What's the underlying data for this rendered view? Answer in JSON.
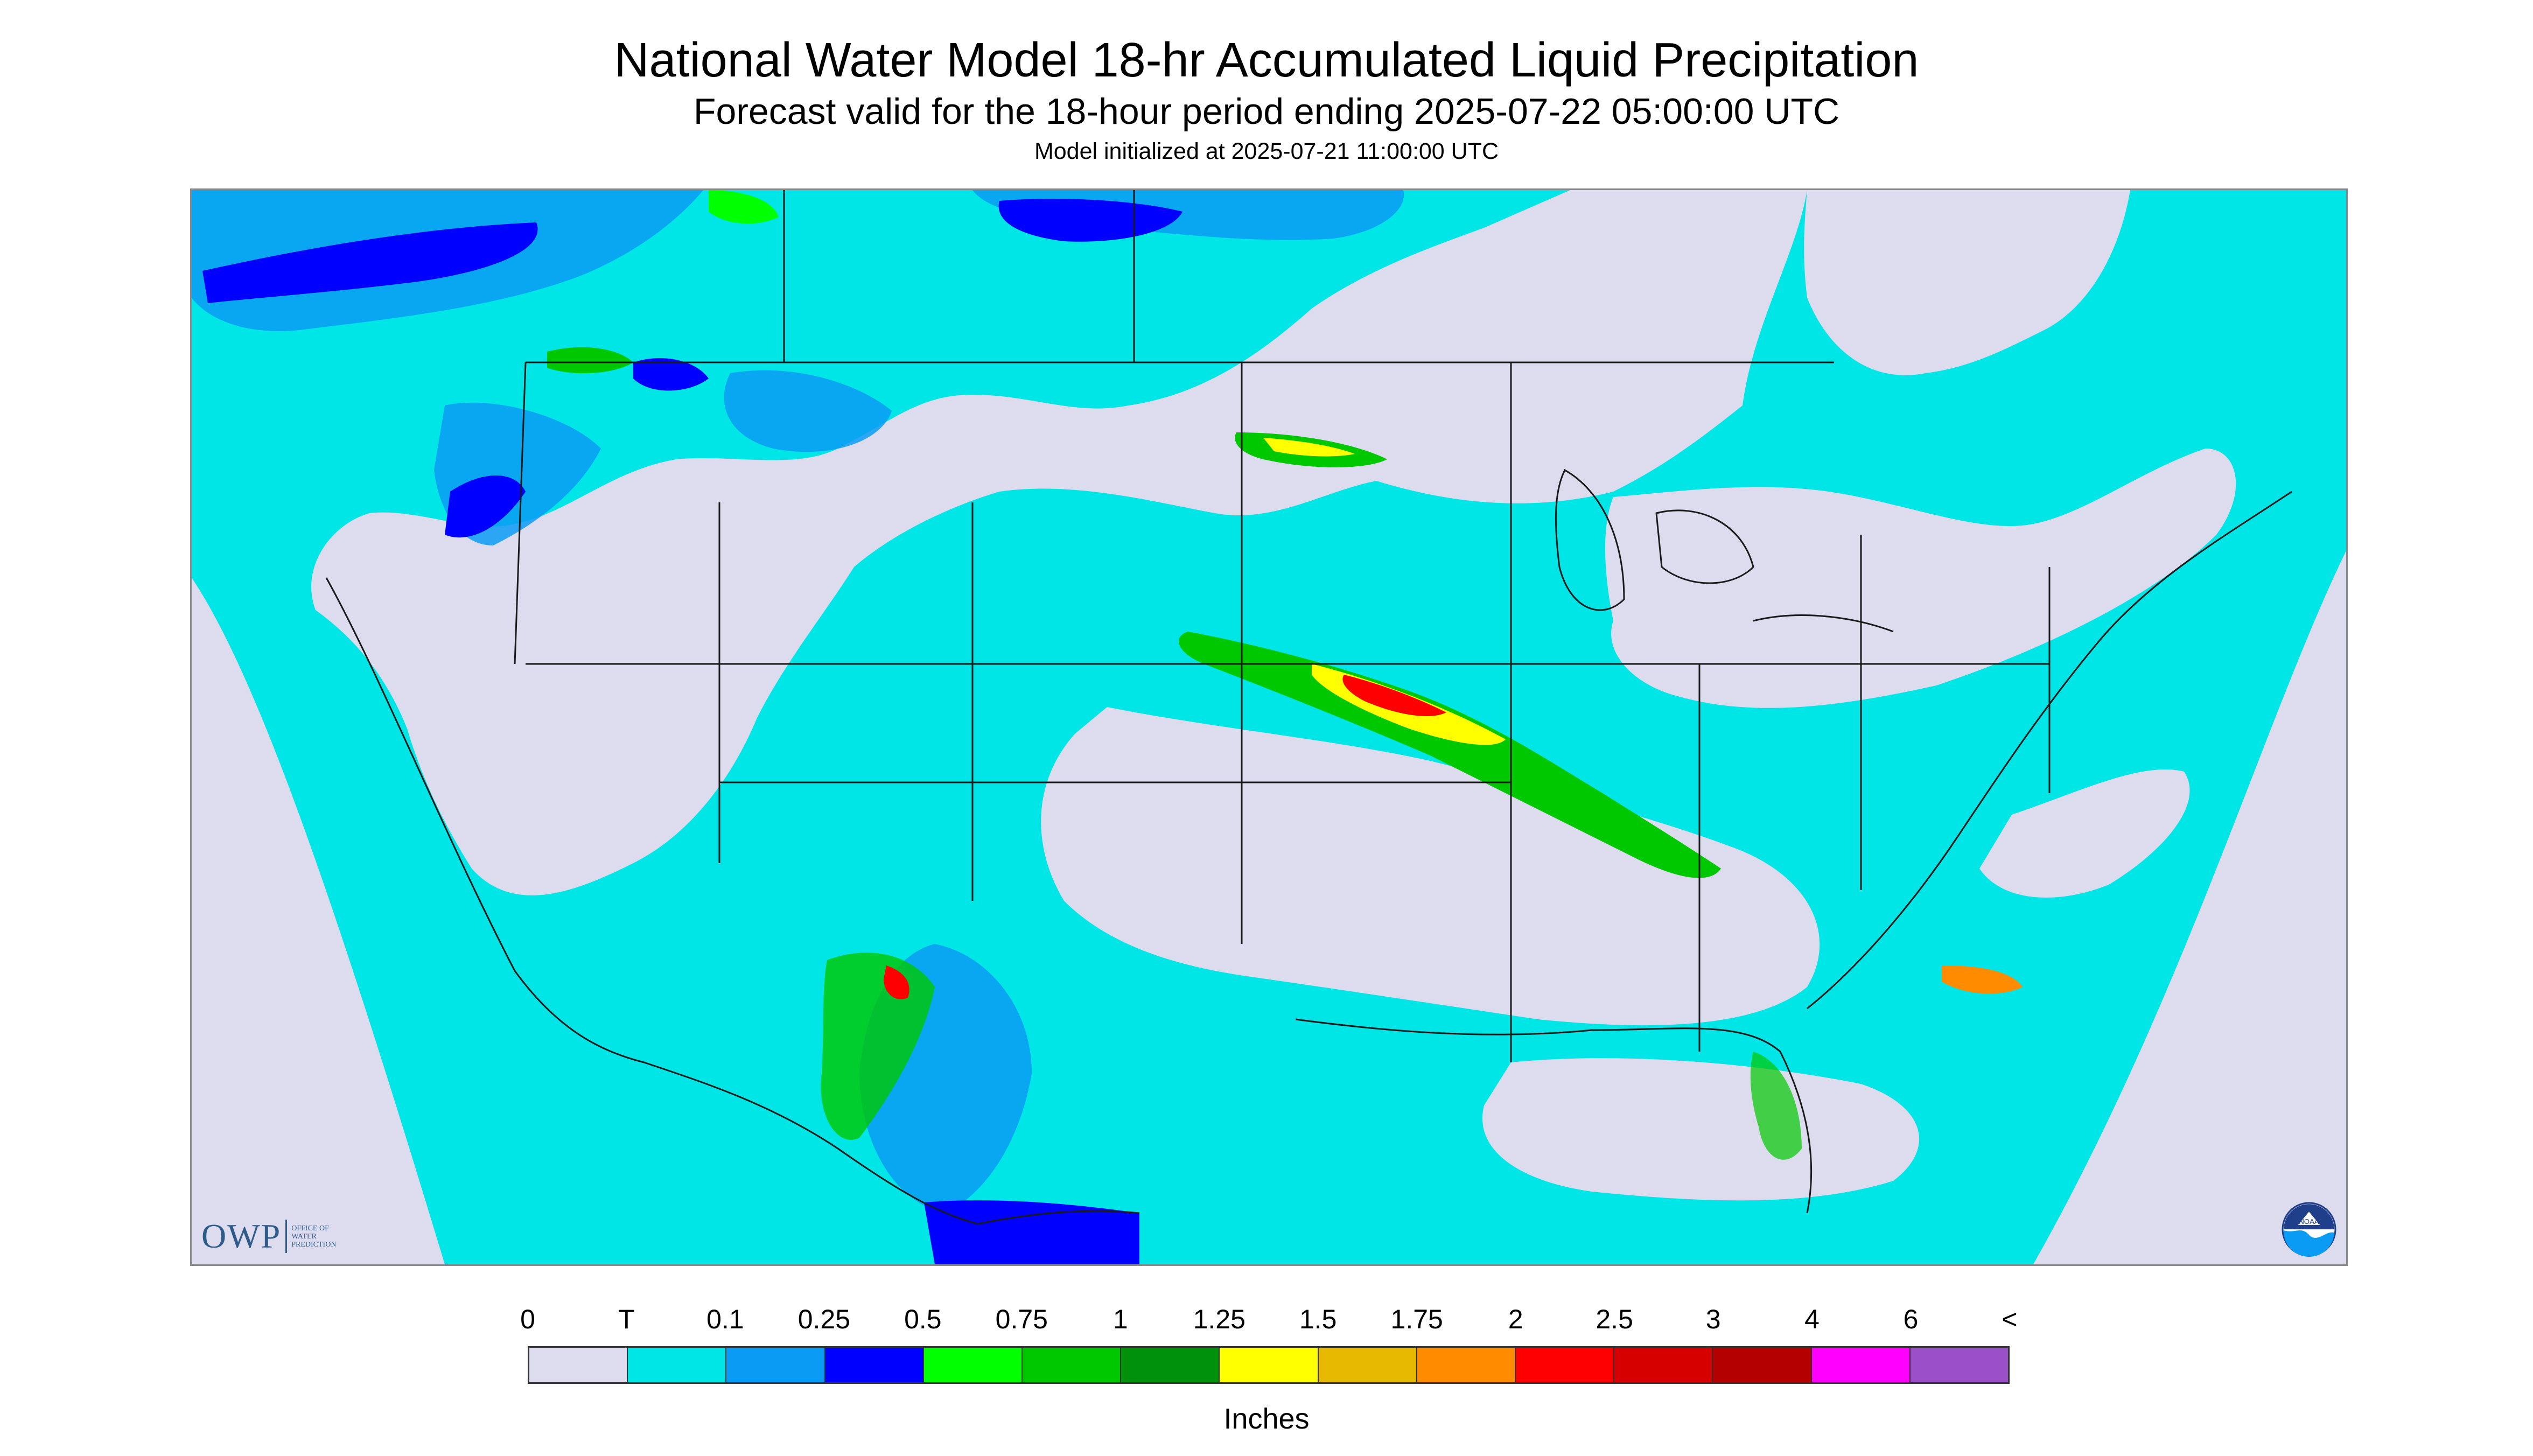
{
  "header": {
    "title": "National Water Model 18-hr Accumulated Liquid Precipitation",
    "subtitle": "Forecast valid for the 18-hour period ending 2025-07-22 05:00:00 UTC",
    "init_line": "Model initialized at 2025-07-21 11:00:00 UTC"
  },
  "logos": {
    "owp_letters": "OWP",
    "owp_words": [
      "OFFICE OF",
      "WATER",
      "PREDICTION"
    ],
    "noaa_text": "NOAA"
  },
  "legend": {
    "tick_labels": [
      "0",
      "T",
      "0.1",
      "0.25",
      "0.5",
      "0.75",
      "1",
      "1.25",
      "1.5",
      "1.75",
      "2",
      "2.5",
      "3",
      "4",
      "6",
      "<"
    ],
    "unit": "Inches",
    "colors": [
      "#dcdcee",
      "#00e5e5",
      "#0a9cf5",
      "#0000ff",
      "#00ff00",
      "#00c800",
      "#00910a",
      "#ffff00",
      "#e6b900",
      "#ff8c00",
      "#ff0000",
      "#d70000",
      "#b40000",
      "#ff00ff",
      "#9a50c8"
    ]
  },
  "map": {
    "background_color": "#dcdcee",
    "region": "Contiguous United States"
  }
}
